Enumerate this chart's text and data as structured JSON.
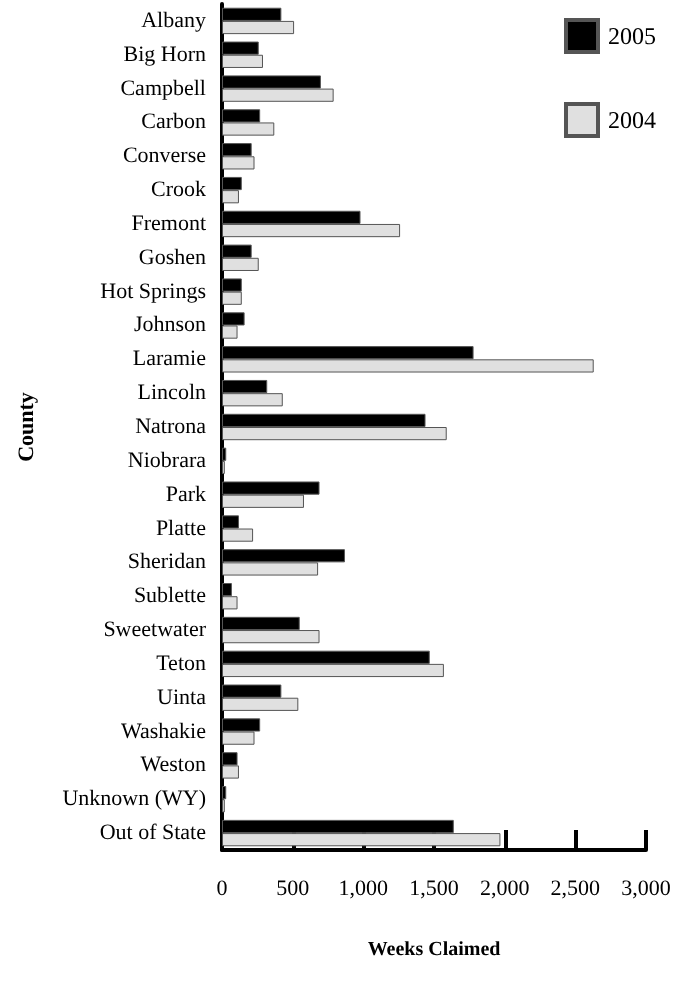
{
  "chart_data": {
    "type": "bar",
    "orientation": "horizontal",
    "xlabel": "Weeks Claimed",
    "ylabel": "County",
    "categories": [
      "Albany",
      "Big Horn",
      "Campbell",
      "Carbon",
      "Converse",
      "Crook",
      "Fremont",
      "Goshen",
      "Hot Springs",
      "Johnson",
      "Laramie",
      "Lincoln",
      "Natrona",
      "Niobrara",
      "Park",
      "Platte",
      "Sheridan",
      "Sublette",
      "Sweetwater",
      "Teton",
      "Uinta",
      "Washakie",
      "Weston",
      "Unknown (WY)",
      "Out of State"
    ],
    "series": [
      {
        "name": "2005",
        "color": "#000000",
        "values": [
          420,
          260,
          700,
          270,
          210,
          140,
          980,
          210,
          140,
          160,
          1780,
          320,
          1440,
          30,
          690,
          120,
          870,
          70,
          550,
          1470,
          420,
          270,
          110,
          30,
          1640
        ]
      },
      {
        "name": "2004",
        "color": "#e0e0e0",
        "values": [
          510,
          290,
          790,
          370,
          230,
          120,
          1260,
          260,
          140,
          110,
          2630,
          430,
          1590,
          20,
          580,
          220,
          680,
          110,
          690,
          1570,
          540,
          230,
          120,
          20,
          1970
        ]
      }
    ],
    "xlim": [
      0,
      3000
    ],
    "xticks": [
      0,
      {
        "value": 500,
        "label": "500"
      },
      {
        "value": 1000,
        "label": "1,000"
      },
      {
        "value": 1500,
        "label": "1,500"
      },
      {
        "value": 2000,
        "label": "2,000"
      },
      {
        "value": 2500,
        "label": "2,500"
      },
      {
        "value": 3000,
        "label": "3,000"
      }
    ],
    "grid": false,
    "legend": "top right"
  }
}
